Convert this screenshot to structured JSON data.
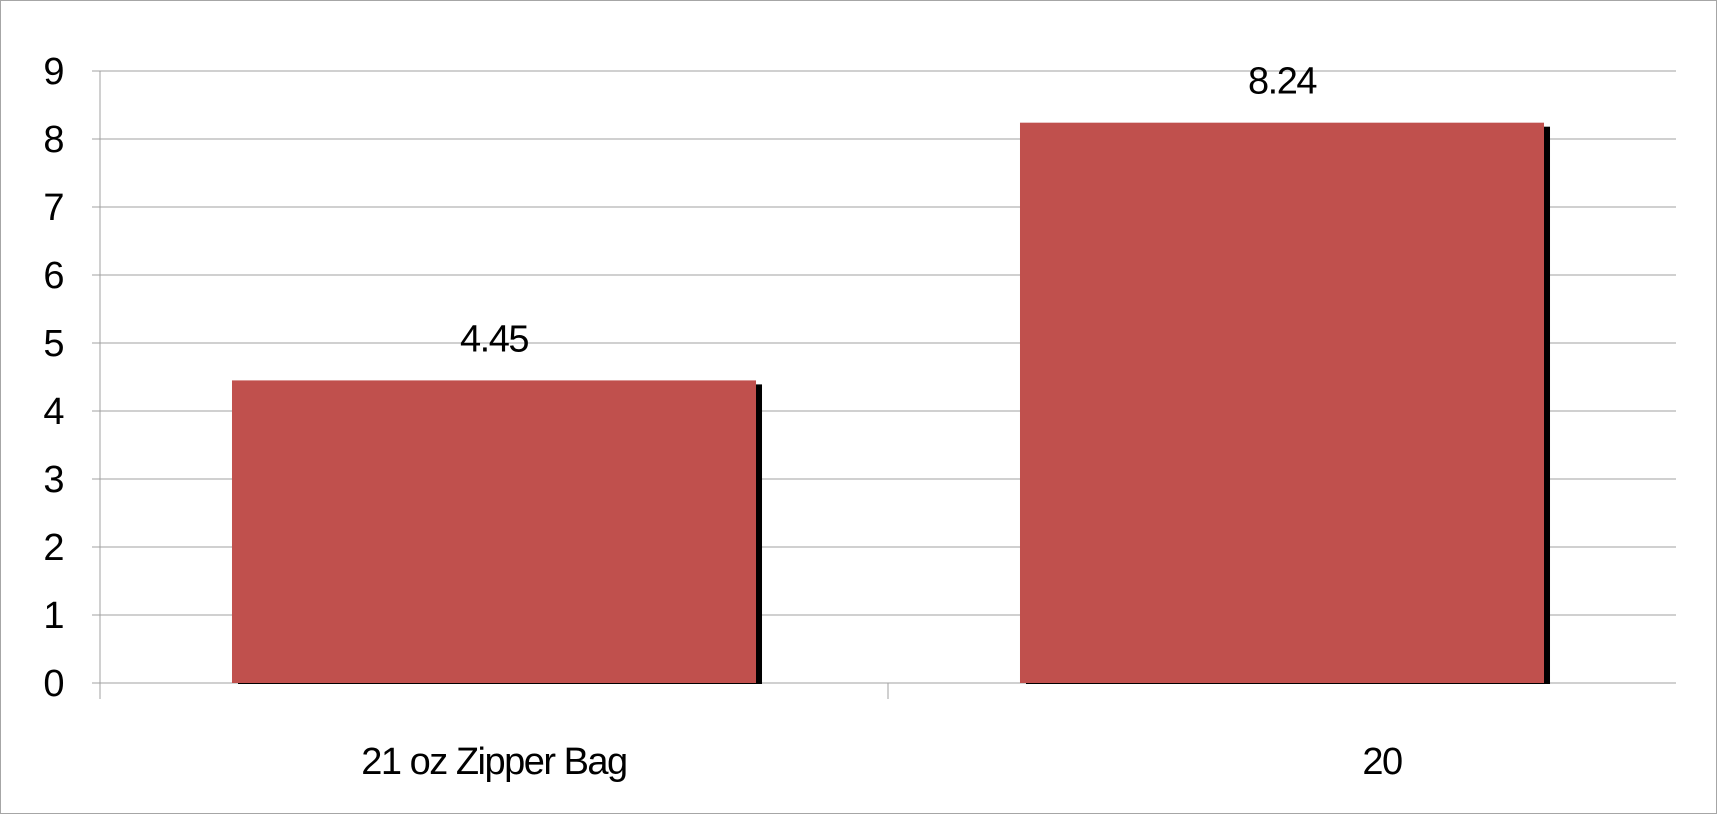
{
  "chart_data": {
    "type": "bar",
    "categories": [
      "21 oz Zipper Bag",
      "20"
    ],
    "values": [
      4.45,
      8.24
    ],
    "data_labels": [
      "4.45",
      "8.24"
    ],
    "title": "",
    "xlabel": "",
    "ylabel": "",
    "ylim": [
      0,
      9
    ],
    "yticks": [
      0,
      1,
      2,
      3,
      4,
      5,
      6,
      7,
      8,
      9
    ],
    "grid": true,
    "legend": "none",
    "colors": {
      "bar": "#c0504d",
      "bar_shadow": "#000000",
      "gridline": "#a0a0a0",
      "axis": "#a0a0a0",
      "text": "#000000"
    }
  }
}
